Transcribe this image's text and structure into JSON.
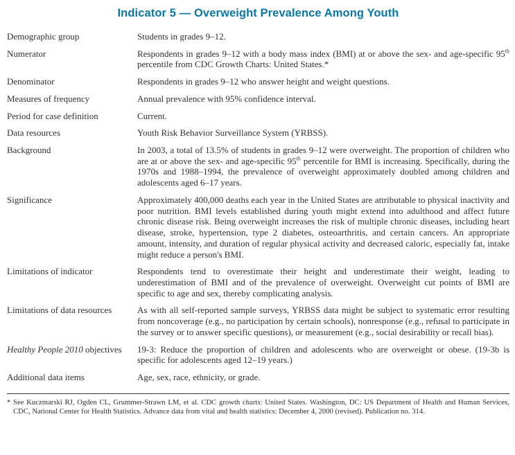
{
  "title": "Indicator 5 — Overweight Prevalence Among Youth",
  "colors": {
    "title_accent": "#0a78a4",
    "body_text": "#33302c",
    "rule": "#3a3632"
  },
  "rows": [
    {
      "label": [
        {
          "t": "Demographic group"
        }
      ],
      "text": [
        {
          "t": "Students in grades 9–12."
        }
      ]
    },
    {
      "label": [
        {
          "t": "Numerator"
        }
      ],
      "text": [
        {
          "t": "Respondents in grades 9–12 with a body mass index (BMI) at or above the sex- and age-specific 95"
        },
        {
          "t": "th",
          "sup": true
        },
        {
          "t": " percentile from CDC Growth Charts: United States.*"
        }
      ]
    },
    {
      "label": [
        {
          "t": "Denominator"
        }
      ],
      "text": [
        {
          "t": "Respondents in grades 9–12 who answer height and weight questions."
        }
      ]
    },
    {
      "label": [
        {
          "t": "Measures of frequency"
        }
      ],
      "text": [
        {
          "t": "Annual prevalence with 95% confidence interval."
        }
      ]
    },
    {
      "label": [
        {
          "t": "Period for case definition"
        }
      ],
      "text": [
        {
          "t": "Current."
        }
      ]
    },
    {
      "label": [
        {
          "t": "Data resources"
        }
      ],
      "text": [
        {
          "t": "Youth Risk Behavior Surveillance System (YRBSS)."
        }
      ]
    },
    {
      "label": [
        {
          "t": "Background"
        }
      ],
      "text": [
        {
          "t": "In 2003, a total of 13.5% of students in grades 9–12 were overweight. The proportion of children who are at or above the sex- and age-specific 95"
        },
        {
          "t": "th",
          "sup": true
        },
        {
          "t": " percentile for BMI is increasing. Specifically, during the 1970s and 1988–1994, the prevalence of overweight approximately doubled among children and adolescents aged 6–17 years."
        }
      ]
    },
    {
      "label": [
        {
          "t": "Significance"
        }
      ],
      "text": [
        {
          "t": "Approximately 400,000 deaths each year in the United States are attributable to physical inactivity and poor nutrition. BMI levels established during youth might extend into adulthood and affect future chronic disease risk. Being overweight increases the risk of multiple chronic diseases, including heart disease, stroke, hypertension, type 2 diabetes, osteoarthritis, and certain cancers. An appropriate amount, intensity, and duration of regular physical activity and decreased caloric, especially fat, intake might reduce a person's BMI."
        }
      ]
    },
    {
      "label": [
        {
          "t": "Limitations of indicator"
        }
      ],
      "text": [
        {
          "t": "Respondents tend to overestimate their height and underestimate their weight, leading to underestimation of BMI and of the prevalence of overweight. Overweight cut points of BMI are specific to age and sex, thereby complicating analysis."
        }
      ]
    },
    {
      "label": [
        {
          "t": "Limitations of data resources"
        }
      ],
      "text": [
        {
          "t": "As with all self-reported sample surveys, YRBSS data might be subject to systematic error resulting from noncoverage (e.g., no participation by certain schools), nonresponse (e.g., refusal to participate in the survey or to answer specific questions), or measurement (e.g., social desirability or recall bias)."
        }
      ]
    },
    {
      "label": [
        {
          "t": "Healthy People 2010",
          "italic": true
        },
        {
          "t": " objectives"
        }
      ],
      "text": [
        {
          "t": "19-3: Reduce the proportion of children and adolescents who are overweight or obese. (19-3b is specific for adolescents aged 12–19 years.)"
        }
      ]
    },
    {
      "label": [
        {
          "t": "Additional data items"
        }
      ],
      "text": [
        {
          "t": "Age, sex, race, ethnicity, or grade."
        }
      ]
    }
  ],
  "footnote": [
    {
      "t": "* See Kuczmarski RJ, Ogden CL, Grummer-Strawn LM, et al. CDC growth charts: United States. Washington, DC: US Department of Health and Human Services, CDC, National Center for Health Statistics. Advance data from vital and health statistics: December 4, 2000 (revised). Publication no. 314."
    }
  ]
}
